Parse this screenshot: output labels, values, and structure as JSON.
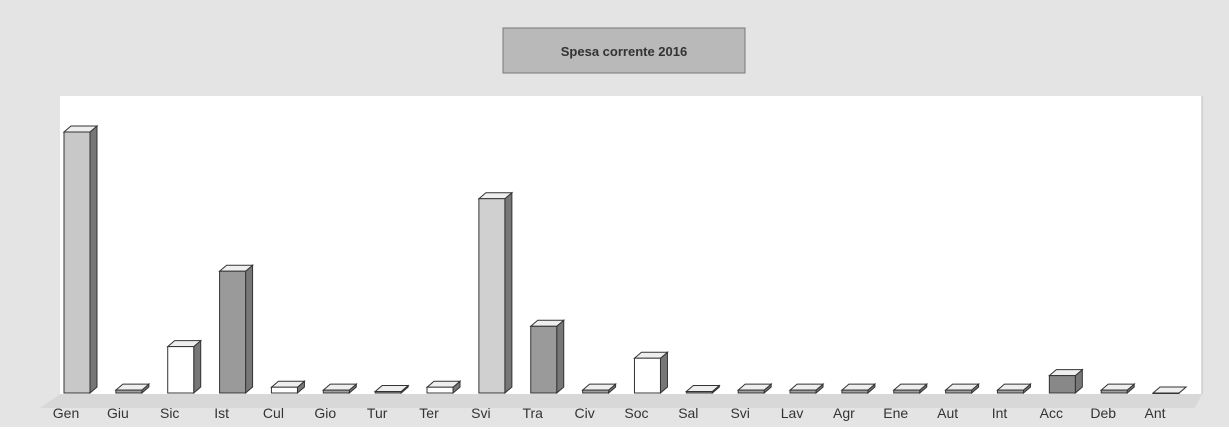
{
  "chart_data": {
    "type": "bar3d",
    "title": "Spesa corrente 2016",
    "categories": [
      "Gen",
      "Giu",
      "Sic",
      "Ist",
      "Cul",
      "Gio",
      "Tur",
      "Ter",
      "Svi",
      "Tra",
      "Civ",
      "Soc",
      "Sal",
      "Svi",
      "Lav",
      "Agr",
      "Ene",
      "Aut",
      "Int",
      "Acc",
      "Deb",
      "Ant"
    ],
    "values": [
      90,
      1,
      16,
      42,
      2,
      1,
      0.5,
      2,
      67,
      23,
      1,
      12,
      0.5,
      1,
      1,
      1,
      1,
      1,
      1,
      6,
      1,
      0
    ],
    "colors": [
      "#c8c8c8",
      "#a0a0a0",
      "#ffffff",
      "#9a9a9a",
      "#ffffff",
      "#a0a0a0",
      "#a0a0a0",
      "#ffffff",
      "#d0d0d0",
      "#9a9a9a",
      "#a0a0a0",
      "#ffffff",
      "#a0a0a0",
      "#a0a0a0",
      "#a0a0a0",
      "#a0a0a0",
      "#a0a0a0",
      "#a0a0a0",
      "#a0a0a0",
      "#888888",
      "#a0a0a0",
      "#a0a0a0"
    ],
    "ylim": [
      0,
      100
    ]
  }
}
